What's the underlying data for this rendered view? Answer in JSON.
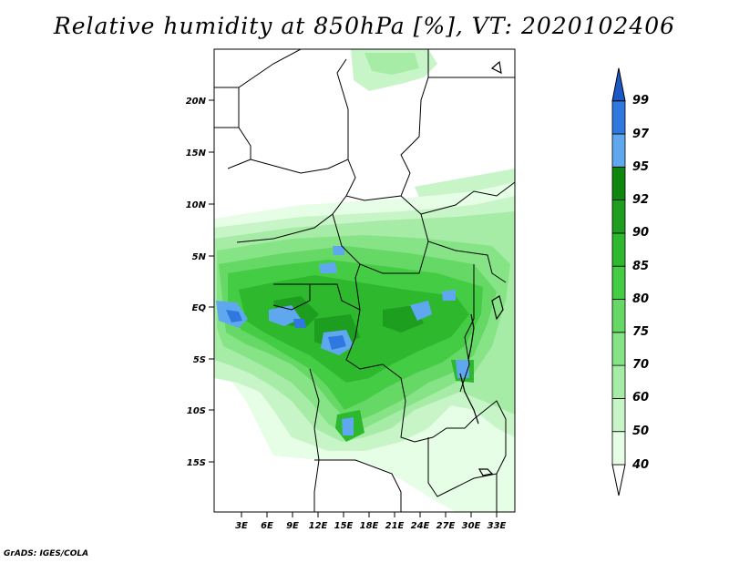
{
  "title": "Relative humidity at 850hPa [%], VT: 2020102406",
  "footer": "GrADS: IGES/COLA",
  "map": {
    "lat_labels": [
      "20N",
      "15N",
      "10N",
      "5N",
      "EQ",
      "5S",
      "10S",
      "15S"
    ],
    "lon_labels": [
      "3E",
      "6E",
      "9E",
      "12E",
      "15E",
      "18E",
      "21E",
      "24E",
      "27E",
      "30E",
      "33E"
    ]
  },
  "colorbar": {
    "levels": [
      "40",
      "50",
      "60",
      "70",
      "75",
      "80",
      "85",
      "90",
      "92",
      "95",
      "97",
      "99"
    ],
    "colors": [
      "#ffffff",
      "#e6fde6",
      "#c8f5c8",
      "#a6eca6",
      "#86e486",
      "#66d866",
      "#44cc44",
      "#2db82d",
      "#1e9e1e",
      "#0f870f",
      "#5fa8f0",
      "#2f78e0",
      "#1a58c8"
    ]
  },
  "colors": {
    "background": "#ffffff",
    "map_frame": "#000000"
  }
}
